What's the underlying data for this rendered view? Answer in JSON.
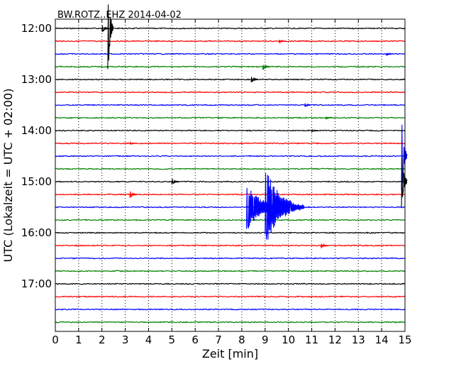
{
  "chart_data": {
    "type": "line",
    "title": "BW.ROTZ..EHZ 2014-04-02",
    "xlabel": "Zeit  [min]",
    "ylabel": "UTC (Lokalzeit = UTC + 02:00)",
    "xlim": [
      0,
      15
    ],
    "x_ticks": [
      "0",
      "1",
      "2",
      "3",
      "4",
      "5",
      "6",
      "7",
      "8",
      "9",
      "10",
      "11",
      "12",
      "13",
      "14",
      "15"
    ],
    "y_ticks": [
      "12:00",
      "13:00",
      "14:00",
      "15:00",
      "16:00",
      "17:00"
    ],
    "grid": "vertical dotted at each minute",
    "trace_colors": [
      "#000000",
      "#ff0000",
      "#0000ff",
      "#008000"
    ],
    "traces": [
      "12:00",
      "12:15",
      "12:30",
      "12:45",
      "13:00",
      "13:15",
      "13:30",
      "13:45",
      "14:00",
      "14:15",
      "14:30",
      "14:45",
      "15:00",
      "15:15",
      "15:30",
      "15:45",
      "16:00",
      "16:15",
      "16:30",
      "16:45",
      "17:00",
      "17:15",
      "17:30",
      "17:45"
    ],
    "events": [
      {
        "trace": "12:00",
        "minute": 2.0,
        "amplitude": 0.35
      },
      {
        "trace": "12:00",
        "minute": 2.25,
        "amplitude": 3.8
      },
      {
        "trace": "12:15",
        "minute": 9.6,
        "amplitude": 0.15
      },
      {
        "trace": "12:30",
        "minute": 14.2,
        "amplitude": 0.15
      },
      {
        "trace": "12:45",
        "minute": 8.9,
        "amplitude": 0.25
      },
      {
        "trace": "13:00",
        "minute": 8.4,
        "amplitude": 0.3
      },
      {
        "trace": "13:30",
        "minute": 10.7,
        "amplitude": 0.15
      },
      {
        "trace": "13:45",
        "minute": 11.6,
        "amplitude": 0.12
      },
      {
        "trace": "14:00",
        "minute": 11.0,
        "amplitude": 0.12
      },
      {
        "trace": "14:15",
        "minute": 3.2,
        "amplitude": 0.1
      },
      {
        "trace": "14:30",
        "minute": 14.85,
        "amplitude": 3.5
      },
      {
        "trace": "15:00",
        "minute": 5.0,
        "amplitude": 0.25
      },
      {
        "trace": "15:00",
        "minute": 14.85,
        "amplitude": 3.0
      },
      {
        "trace": "15:15",
        "minute": 3.2,
        "amplitude": 0.3
      },
      {
        "trace": "15:30",
        "minute": 8.2,
        "amplitude": 1.8
      },
      {
        "trace": "15:30",
        "minute": 9.0,
        "amplitude": 3.0
      },
      {
        "trace": "16:15",
        "minute": 11.4,
        "amplitude": 0.2
      }
    ]
  }
}
